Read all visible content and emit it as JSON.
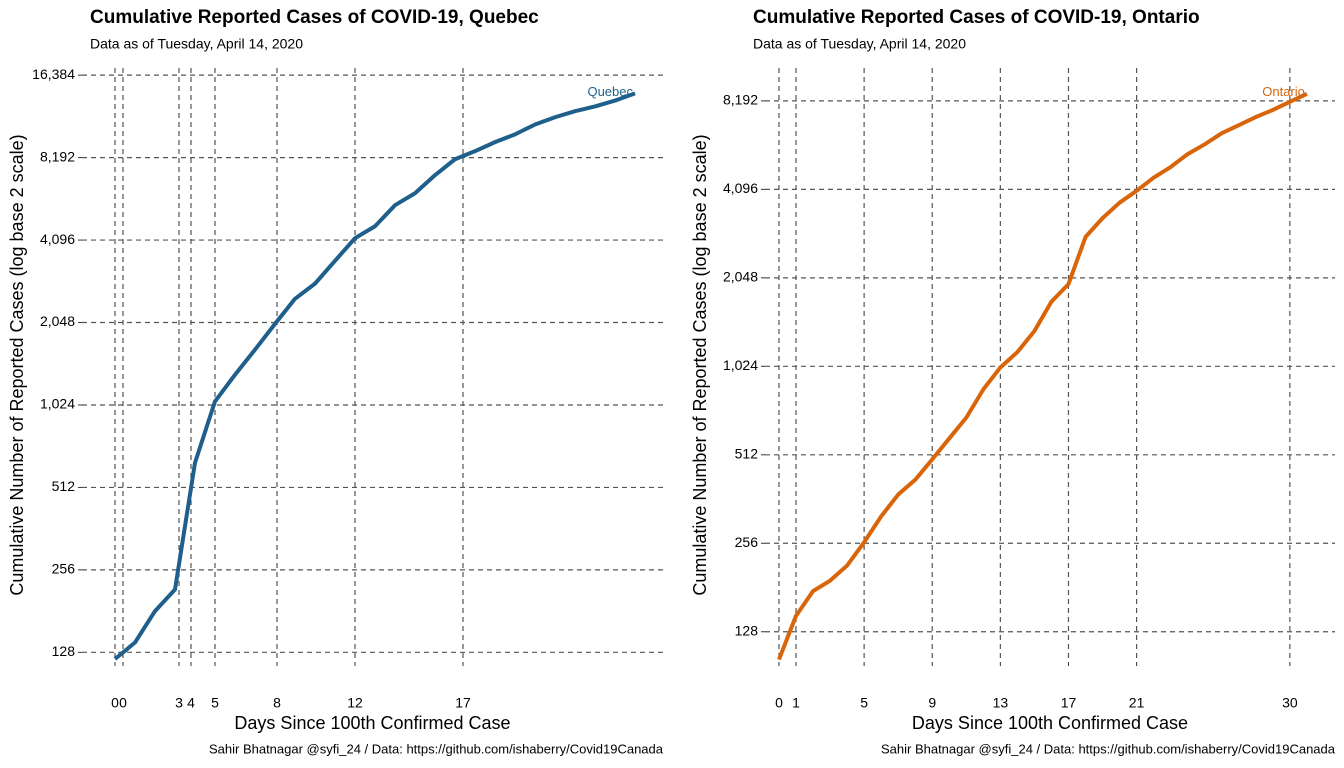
{
  "chart_data": [
    {
      "type": "line",
      "title": "Cumulative Reported Cases of COVID-19, Quebec",
      "subtitle": "Data as of Tuesday, April 14, 2020",
      "x_label": "Days Since 100th Confirmed Case",
      "y_label": "Cumulative Number of Reported Cases (log base 2 scale)",
      "caption": "Sahir Bhatnagar @syfi_24 / Data: https://github.com/ishaberry/Covid19Canada",
      "y_scale": "log2",
      "grid": true,
      "x": [
        0,
        1,
        2,
        3,
        4,
        5,
        6,
        7,
        8,
        9,
        10,
        11,
        12,
        13,
        14,
        15,
        16,
        17,
        18,
        19,
        20,
        21,
        22,
        23,
        24,
        25,
        26
      ],
      "series": [
        {
          "name": "Quebec",
          "color": "#1f5f8b",
          "values": [
            121,
            139,
            181,
            217,
            630,
            1055,
            1320,
            1630,
            2025,
            2500,
            2840,
            3440,
            4160,
            4600,
            5490,
            6070,
            7070,
            8080,
            8650,
            9330,
            9960,
            10820,
            11500,
            12100,
            12600,
            13230,
            14060
          ]
        }
      ],
      "xlim": [
        -1.65,
        27.4
      ],
      "ylim": [
        118,
        17400
      ],
      "xticks": [
        0,
        {
          "value": 0.4,
          "label": "0"
        },
        {
          "value": 3.2,
          "label": "3"
        },
        {
          "value": 3.8,
          "label": "4"
        },
        5,
        {
          "value": 8.1,
          "label": "8"
        },
        12,
        {
          "value": 17.4,
          "label": "17"
        }
      ],
      "yticks": [
        128,
        256,
        512,
        {
          "value": 1024,
          "label": "1,024"
        },
        {
          "value": 2048,
          "label": "2,048"
        },
        {
          "value": 4096,
          "label": "4,096"
        },
        {
          "value": 8192,
          "label": "8,192"
        },
        {
          "value": 16384,
          "label": "16,384"
        }
      ]
    },
    {
      "type": "line",
      "title": "Cumulative Reported Cases of COVID-19, Ontario",
      "subtitle": "Data as of Tuesday, April 14, 2020",
      "x_label": "Days Since 100th Confirmed Case",
      "y_label": "Cumulative Number of Reported Cases (log base 2 scale)",
      "caption": "Sahir Bhatnagar @syfi_24 / Data: https://github.com/ishaberry/Covid19Canada",
      "y_scale": "log2",
      "grid": true,
      "x": [
        0,
        1,
        2,
        3,
        4,
        5,
        6,
        7,
        8,
        9,
        10,
        11,
        12,
        13,
        14,
        15,
        16,
        17,
        18,
        19,
        20,
        21,
        22,
        23,
        24,
        25,
        26,
        27,
        28,
        29,
        30,
        31
      ],
      "series": [
        {
          "name": "Ontario",
          "color": "#d9650b",
          "values": [
            103,
            145,
            176,
            191,
            215,
            258,
            316,
            375,
            421,
            494,
            582,
            685,
            855,
            1015,
            1145,
            1350,
            1700,
            1950,
            2820,
            3270,
            3690,
            4050,
            4490,
            4880,
            5400,
            5830,
            6360,
            6770,
            7220,
            7630,
            8130,
            8660
          ]
        }
      ],
      "xlim": [
        -0.82,
        32.65
      ],
      "ylim": [
        101,
        10600
      ],
      "xticks": [
        0,
        1,
        5,
        9,
        13,
        17,
        21,
        30
      ],
      "yticks": [
        128,
        256,
        512,
        {
          "value": 1024,
          "label": "1,024"
        },
        {
          "value": 2048,
          "label": "2,048"
        },
        {
          "value": 4096,
          "label": "4,096"
        },
        {
          "value": 8192,
          "label": "8,192"
        }
      ]
    }
  ]
}
